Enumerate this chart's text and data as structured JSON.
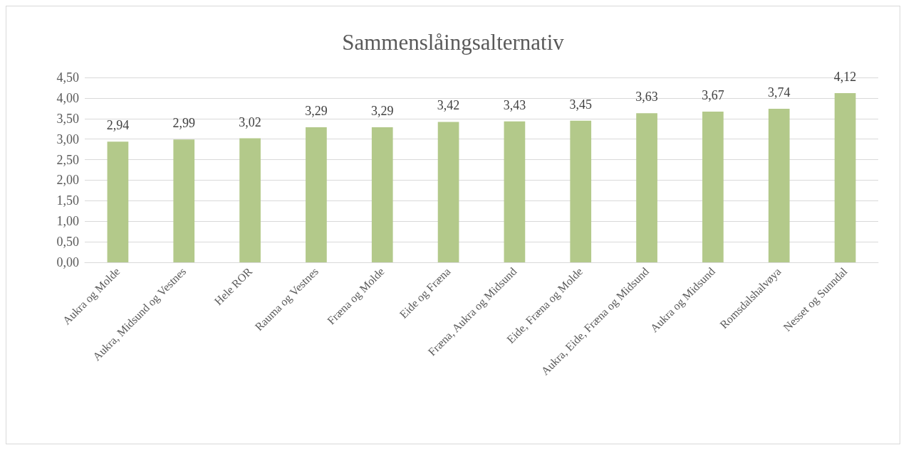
{
  "chart_data": {
    "type": "bar",
    "title": "Sammenslåingsalternativ",
    "categories": [
      "Aukra og Molde",
      "Aukra, Midsund og Vestnes",
      "Hele ROR",
      "Rauma og Vestnes",
      "Fræna og Molde",
      "Eide og Fræna",
      "Fræna, Aukra og Midsund",
      "Eide, Fræna og Molde",
      "Aukra, Eide, Fræna og Midsund",
      "Aukra og Midsund",
      "Romsdalshalvøya",
      "Nesset og Sunndal"
    ],
    "values": [
      2.94,
      2.99,
      3.02,
      3.29,
      3.29,
      3.42,
      3.43,
      3.45,
      3.63,
      3.67,
      3.74,
      4.12
    ],
    "value_labels": [
      "2,94",
      "2,99",
      "3,02",
      "3,29",
      "3,29",
      "3,42",
      "3,43",
      "3,45",
      "3,63",
      "3,67",
      "3,74",
      "4,12"
    ],
    "color": "#b3c98a",
    "ylim": [
      0,
      4.5
    ],
    "yticks": [
      {
        "value": 0,
        "label": "0,00"
      },
      {
        "value": 0.5,
        "label": "0,50"
      },
      {
        "value": 1,
        "label": "1,00"
      },
      {
        "value": 1.5,
        "label": "1,50"
      },
      {
        "value": 2,
        "label": "2,00"
      },
      {
        "value": 2.5,
        "label": "2,50"
      },
      {
        "value": 3,
        "label": "3,00"
      },
      {
        "value": 3.5,
        "label": "3,50"
      },
      {
        "value": 4,
        "label": "4,00"
      },
      {
        "value": 4.5,
        "label": "4,50"
      }
    ],
    "grid": "y"
  }
}
